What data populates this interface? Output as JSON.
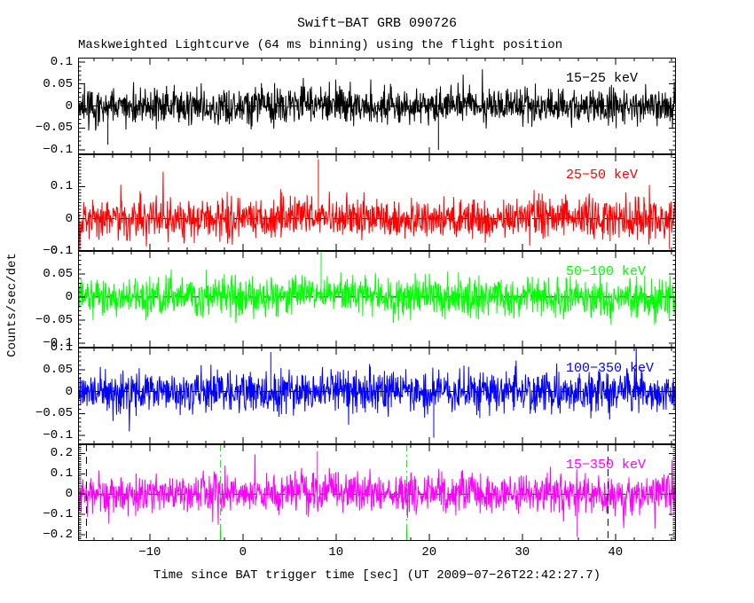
{
  "chart_data": {
    "type": "line",
    "title": "Swift−BAT GRB 090726",
    "subtitle": "Maskweighted Lightcurve (64 ms binning) using the flight position",
    "xlabel": "Time since BAT trigger time [sec] (UT 2009−07−26T22:42:27.7)",
    "ylabel": "Counts/sec/det",
    "xlim": [
      -17.7,
      46.5
    ],
    "xticks": [
      -10,
      0,
      10,
      20,
      30,
      40
    ],
    "x_minor_step": 2,
    "y_minor_step": 0.01,
    "grid": false,
    "legend_position": "inside-top-right-of-each-panel",
    "background_color": "#ffffff",
    "frame_color": "#000000",
    "zero_line": {
      "color": "#000000",
      "style": "dashed"
    },
    "panels": [
      {
        "name": "15−25 keV",
        "color": "#000000",
        "ylim": [
          -0.11,
          0.11
        ],
        "yticks": [
          0.1,
          0.05,
          0,
          -0.05,
          -0.1
        ],
        "noise_sigma": 0.021,
        "seed": 11,
        "burst": {
          "t0": 8.0,
          "width": 3.0,
          "amp": 0.004
        },
        "spikes": [
          {
            "t": 21.0,
            "v": -0.1
          },
          {
            "t": -14.5,
            "v": -0.088
          }
        ]
      },
      {
        "name": "25−50 keV",
        "color": "#ff0000",
        "ylim": [
          -0.1,
          0.2
        ],
        "yticks": [
          0.1,
          0,
          -0.1
        ],
        "noise_sigma": 0.03,
        "seed": 22,
        "burst": {
          "t0": 8.0,
          "width": 3.0,
          "amp": 0.009
        },
        "spikes": [
          {
            "t": 8.1,
            "v": 0.185
          },
          {
            "t": 45.8,
            "v": -0.095
          }
        ]
      },
      {
        "name": "50−100 keV",
        "color": "#00ff00",
        "ylim": [
          -0.11,
          0.1
        ],
        "yticks": [
          0.1,
          0.05,
          0,
          -0.05,
          -0.1
        ],
        "noise_sigma": 0.021,
        "seed": 33,
        "burst": {
          "t0": 8.3,
          "width": 3.0,
          "amp": 0.006
        },
        "spikes": [
          {
            "t": 8.4,
            "v": 0.099
          }
        ]
      },
      {
        "name": "100−350 keV",
        "color": "#0000ff",
        "ylim": [
          -0.12,
          0.1
        ],
        "yticks": [
          0.1,
          0.05,
          0,
          -0.05,
          -0.1
        ],
        "noise_sigma": 0.023,
        "seed": 44,
        "burst": null,
        "spikes": [
          {
            "t": 3.0,
            "v": 0.09
          },
          {
            "t": 20.5,
            "v": -0.105
          }
        ]
      },
      {
        "name": "15−350 keV",
        "color": "#ff00ff",
        "ylim": [
          -0.23,
          0.245
        ],
        "yticks": [
          0.2,
          0.1,
          0,
          -0.1,
          -0.2
        ],
        "noise_sigma": 0.048,
        "seed": 55,
        "burst": {
          "t0": 8.5,
          "width": 3.0,
          "amp": 0.02
        },
        "spikes": [
          {
            "t": 8.0,
            "v": 0.21
          },
          {
            "t": 35.9,
            "v": -0.21
          }
        ]
      }
    ],
    "markers": [
      {
        "t": -16.8,
        "color": "#000000",
        "style": "dashed",
        "panel": 4,
        "axis_tick": false
      },
      {
        "t": -2.4,
        "color": "#00ee00",
        "style": "dashdot",
        "panel": 4,
        "axis_tick": true
      },
      {
        "t": 17.6,
        "color": "#00ee00",
        "style": "dashdot",
        "panel": 4,
        "axis_tick": true
      },
      {
        "t": 39.2,
        "color": "#000000",
        "style": "dashed",
        "panel": 4,
        "axis_tick": false
      }
    ]
  }
}
